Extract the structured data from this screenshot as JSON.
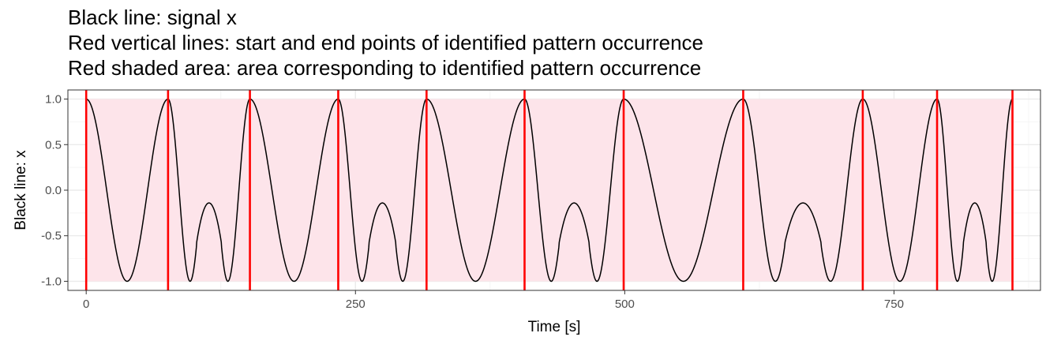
{
  "title_lines": [
    "Black line: signal x",
    "Red vertical lines: start and end points of identified pattern occurrence",
    "Red shaded area: area corresponding to identified pattern occurrence"
  ],
  "chart_data": {
    "type": "line",
    "xlabel": "Time [s]",
    "ylabel": "Black line: x",
    "xlim": [
      -17,
      886
    ],
    "ylim": [
      -1.1,
      1.1
    ],
    "x_ticks": [
      0,
      250,
      500,
      750
    ],
    "x_tick_labels": [
      "0",
      "250",
      "500",
      "750"
    ],
    "y_ticks": [
      1.0,
      0.5,
      0.0,
      -0.5,
      -1.0
    ],
    "y_tick_labels": [
      "1.0",
      "0.5",
      "0.0",
      "-0.5",
      "-1.0"
    ],
    "grid": true,
    "series": [
      {
        "color": "#000000",
        "segments": [
          {
            "kind": "cosine",
            "start": 0,
            "end": 76
          },
          {
            "kind": "wavelet",
            "start": 76,
            "end": 152
          },
          {
            "kind": "cosine",
            "start": 152,
            "end": 234
          },
          {
            "kind": "wavelet",
            "start": 234,
            "end": 316
          },
          {
            "kind": "cosine",
            "start": 316,
            "end": 407
          },
          {
            "kind": "wavelet",
            "start": 407,
            "end": 499
          },
          {
            "kind": "cosine",
            "start": 499,
            "end": 610
          },
          {
            "kind": "wavelet",
            "start": 610,
            "end": 721
          },
          {
            "kind": "cosine",
            "start": 721,
            "end": 790
          },
          {
            "kind": "wavelet",
            "start": 790,
            "end": 860
          }
        ]
      }
    ],
    "boundaries": [
      0,
      76,
      152,
      234,
      316,
      407,
      499,
      610,
      721,
      790,
      860
    ],
    "shaded_region": [
      0,
      860
    ],
    "colors": {
      "signal": "#000000",
      "boundary": "#ff0000",
      "shade": "#fde4ea",
      "panel_border": "#333333",
      "grid_major": "#ebebeb",
      "grid_minor": "#f4f4f4"
    }
  }
}
